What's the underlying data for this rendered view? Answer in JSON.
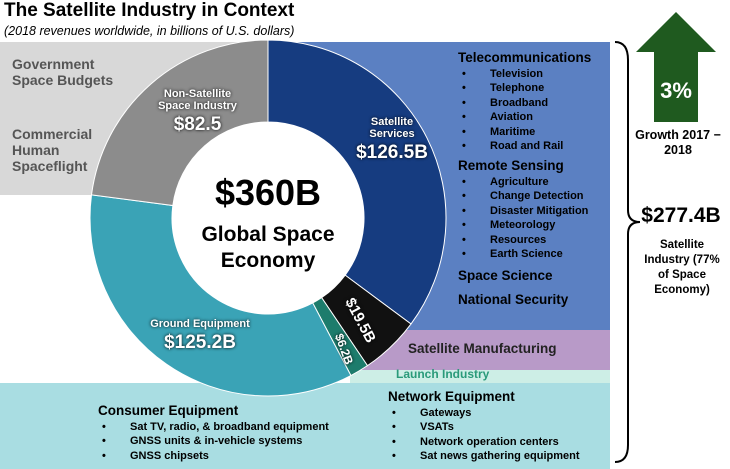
{
  "chart_data": {
    "type": "pie",
    "title": "The Satellite Industry in Context",
    "subtitle": "(2018 revenues worldwide, in billions of U.S. dollars)",
    "categories": [
      "Satellite Services",
      "Satellite Manufacturing",
      "Launch Industry",
      "Ground Equipment",
      "Non-Satellite Space Industry"
    ],
    "values": [
      126.5,
      19.5,
      6.2,
      125.2,
      82.5
    ],
    "value_labels": [
      "$126.5B",
      "$19.5B",
      "$6.2B",
      "$125.2B",
      "$82.5"
    ],
    "colors": [
      "#163c80",
      "#111111",
      "#1d7c6c",
      "#3aa3b6",
      "#8c8c8c"
    ],
    "center": {
      "value_label": "$360B",
      "label": "Global Space Economy"
    }
  },
  "panels": {
    "government": [
      "Government Space Budgets",
      "Commercial Human Spaceflight"
    ],
    "telecommunications": {
      "heading": "Telecommunications",
      "items": [
        "Television",
        "Telephone",
        "Broadband",
        "Aviation",
        "Maritime",
        "Road and Rail"
      ]
    },
    "remote_sensing": {
      "heading": "Remote Sensing",
      "items": [
        "Agriculture",
        "Change Detection",
        "Disaster Mitigation",
        "Meteorology",
        "Resources",
        "Earth Science"
      ]
    },
    "other_services": [
      "Space Science",
      "National Security"
    ],
    "consumer_equipment": {
      "heading": "Consumer Equipment",
      "items": [
        "Sat TV, radio, & broadband equipment",
        "GNSS units & in-vehicle systems",
        "GNSS chipsets"
      ]
    },
    "network_equipment": {
      "heading": "Network Equipment",
      "items": [
        "Gateways",
        "VSATs",
        "Network operation centers",
        "Sat news gathering equipment"
      ]
    }
  },
  "side": {
    "growth_value": "3%",
    "growth_label": "Growth 2017 − 2018",
    "industry_value": "$277.4B",
    "industry_label": "Satellite Industry (77% of Space Economy)"
  }
}
